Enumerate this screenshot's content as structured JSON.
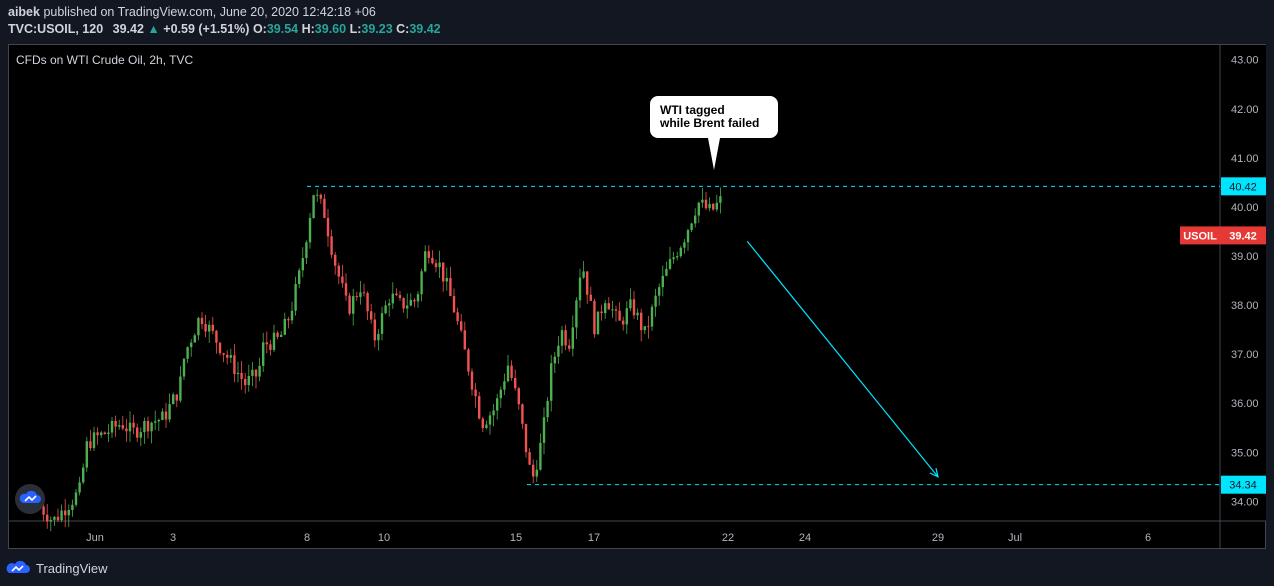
{
  "header": {
    "author": "aibek",
    "published_text": "published on TradingView.com, June 20, 2020 12:42:18 +06",
    "symbol": "TVC:USOIL, 120",
    "last": "39.42",
    "change": "+0.59 (+1.51%)",
    "o_label": "O:",
    "o_value": "39.54",
    "h_label": "H:",
    "h_value": "39.60",
    "l_label": "L:",
    "l_value": "39.23",
    "c_label": "C:",
    "c_value": "39.42"
  },
  "footer": {
    "brand": "TradingView"
  },
  "colors": {
    "background": "#000000",
    "up": "#26a69a",
    "candle_up": "#4caf50",
    "candle_down": "#ef5350",
    "level_line": "#00e5ff",
    "price_tag": "#e53935"
  },
  "chart_data": {
    "type": "candlestick",
    "title": "CFDs on WTI Crude Oil, 2h, TVC",
    "ylim": [
      33.6,
      43.3
    ],
    "yticks": [
      34,
      35,
      36,
      37,
      38,
      39,
      40,
      41,
      42,
      43
    ],
    "ytick_labels": [
      "34.00",
      "35.00",
      "36.00",
      "37.00",
      "38.00",
      "39.00",
      "40.00",
      "41.00",
      "42.00",
      "43.00"
    ],
    "x_tick_labels": [
      "Jun",
      "3",
      "8",
      "10",
      "15",
      "17",
      "22",
      "24",
      "29",
      "Jul",
      "6"
    ],
    "x_tick_days": [
      1,
      3,
      8,
      10,
      15,
      17,
      22,
      24,
      29,
      31,
      36
    ],
    "visible_day_range": [
      29.5,
      38
    ],
    "price_path_days": [
      29.5,
      30.0,
      31.0,
      31.3,
      32.0,
      32.6,
      33.0,
      33.6,
      34.2,
      34.8,
      35.0,
      35.6,
      36.3,
      36.8,
      37.3,
      37.8,
      38.0,
      38.6,
      39.0,
      39.4,
      39.9,
      40.3,
      40.7,
      41.2,
      41.7,
      42.2,
      42.8,
      43.2,
      43.8,
      44.2,
      44.7,
      45.2,
      45.8,
      46.3,
      46.8,
      47.3,
      47.7,
      48.2,
      48.6,
      48.9,
      49.3,
      49.6,
      50.1,
      50.6,
      51.0,
      51.5,
      52.0,
      52.5,
      53.0,
      53.5,
      54.0,
      54.5,
      55.0,
      55.5,
      55.8,
      56.1,
      56.4,
      56.7,
      57.0,
      57.3,
      57.5
    ],
    "price_path_values": [
      33.9,
      33.6,
      34.2,
      35.2,
      35.4,
      35.6,
      35.4,
      35.6,
      35.7,
      36.3,
      37.0,
      37.8,
      37.2,
      36.8,
      36.4,
      36.6,
      37.2,
      37.3,
      37.8,
      38.7,
      40.3,
      39.9,
      38.9,
      37.9,
      38.4,
      37.3,
      38.2,
      38.0,
      38.1,
      39.2,
      38.8,
      38.0,
      36.7,
      35.6,
      35.9,
      36.8,
      35.9,
      34.4,
      35.3,
      36.6,
      37.5,
      37.2,
      38.9,
      37.5,
      38.2,
      37.6,
      38.0,
      37.4,
      38.3,
      38.9,
      39.4,
      40.1,
      39.9,
      40.2,
      39.6,
      39.4,
      39.42,
      39.42,
      39.42,
      39.42,
      39.42
    ],
    "levels": [
      {
        "value": 40.42,
        "label": "40.42"
      },
      {
        "value": 34.34,
        "label": "34.34"
      }
    ],
    "last_price": {
      "value": 39.42,
      "symbol": "USOIL",
      "label": "39.42"
    },
    "annotation": {
      "text_line1": "WTI tagged",
      "text_line2": "while Brent failed"
    },
    "projection_arrow": {
      "from": [
        22.5,
        39.3
      ],
      "to": [
        29.0,
        34.5
      ]
    }
  }
}
